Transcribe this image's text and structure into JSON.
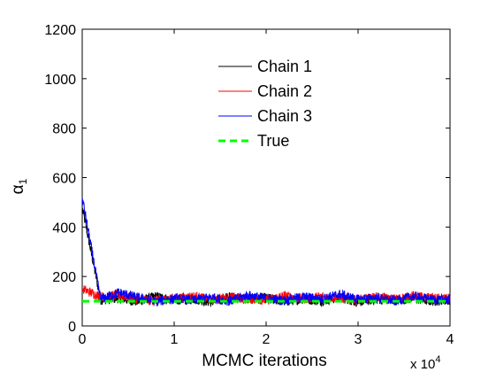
{
  "chart_data": {
    "type": "line",
    "xlabel": "MCMC iterations",
    "ylabel": "α",
    "ylabel_subscript": "1",
    "x_multiplier": {
      "base": "x 10",
      "exponent": "4"
    },
    "xlim": [
      0,
      40000
    ],
    "ylim": [
      0,
      1200
    ],
    "xticks": [
      0,
      10000,
      20000,
      30000,
      40000
    ],
    "xtick_labels": [
      "0",
      "1",
      "2",
      "3",
      "4"
    ],
    "yticks": [
      0,
      200,
      400,
      600,
      800,
      1000,
      1200
    ],
    "ytick_labels": [
      "0",
      "200",
      "400",
      "600",
      "800",
      "1000",
      "1200"
    ],
    "grid": false,
    "legend_position": "upper-center",
    "series": [
      {
        "name": "Chain 1",
        "color": "#000000",
        "style": "solid",
        "x": [
          0,
          2000,
          4000,
          6000,
          8000,
          10000,
          12000,
          14000,
          16000,
          18000,
          20000,
          22000,
          24000,
          26000,
          28000,
          30000,
          32000,
          34000,
          36000,
          38000,
          40000
        ],
        "values": [
          480,
          105,
          112,
          98,
          120,
          104,
          110,
          96,
          118,
          107,
          113,
          99,
          109,
          101,
          115,
          97,
          108,
          103,
          111,
          100,
          106
        ]
      },
      {
        "name": "Chain 2",
        "color": "#ff0000",
        "style": "solid",
        "x": [
          0,
          2000,
          4000,
          6000,
          8000,
          10000,
          12000,
          14000,
          16000,
          18000,
          20000,
          22000,
          24000,
          26000,
          28000,
          30000,
          32000,
          34000,
          36000,
          38000,
          40000
        ],
        "values": [
          150,
          118,
          125,
          108,
          104,
          112,
          120,
          106,
          117,
          110,
          104,
          122,
          109,
          119,
          113,
          105,
          116,
          108,
          121,
          112,
          110
        ]
      },
      {
        "name": "Chain 3",
        "color": "#0000ff",
        "style": "solid",
        "x": [
          0,
          2000,
          4000,
          6000,
          8000,
          10000,
          12000,
          14000,
          16000,
          18000,
          20000,
          22000,
          24000,
          26000,
          28000,
          30000,
          32000,
          34000,
          36000,
          38000,
          40000
        ],
        "values": [
          520,
          108,
          135,
          115,
          98,
          110,
          104,
          116,
          100,
          124,
          111,
          103,
          118,
          109,
          128,
          107,
          114,
          101,
          119,
          106,
          108
        ]
      },
      {
        "name": "True",
        "color": "#00ff00",
        "style": "dashed",
        "x": [
          0,
          40000
        ],
        "values": [
          100,
          100
        ]
      }
    ]
  }
}
